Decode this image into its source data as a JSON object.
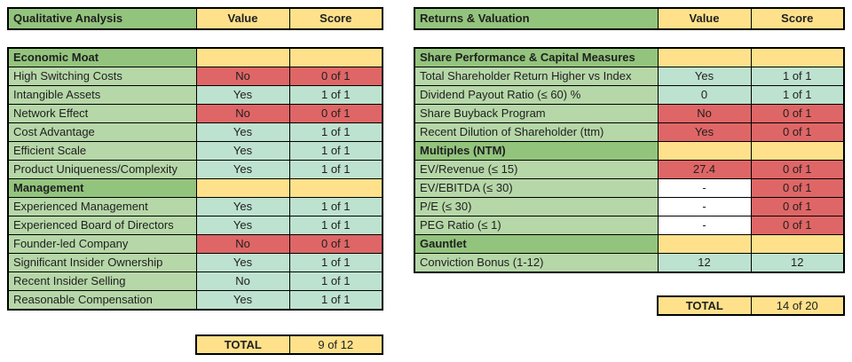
{
  "colors": {
    "header_green": "#93c47d",
    "label_green": "#b6d7a8",
    "pass_teal": "#bde2cf",
    "fail_red": "#df6666",
    "header_yellow": "#ffe18b",
    "empty_white": "#ffffff",
    "border_black": "#000000"
  },
  "left_table": {
    "title": "Qualitative Analysis",
    "columns": {
      "value": "Value",
      "score": "Score"
    },
    "rows": [
      {
        "type": "section",
        "label": "Economic Moat"
      },
      {
        "type": "item",
        "label": "High Switching Costs",
        "value": "No",
        "score": "0 of 1",
        "status": "fail"
      },
      {
        "type": "item",
        "label": "Intangible Assets",
        "value": "Yes",
        "score": "1 of 1",
        "status": "pass"
      },
      {
        "type": "item",
        "label": "Network Effect",
        "value": "No",
        "score": "0 of 1",
        "status": "fail"
      },
      {
        "type": "item",
        "label": "Cost Advantage",
        "value": "Yes",
        "score": "1 of 1",
        "status": "pass"
      },
      {
        "type": "item",
        "label": "Efficient Scale",
        "value": "Yes",
        "score": "1 of 1",
        "status": "pass"
      },
      {
        "type": "item",
        "label": "Product Uniqueness/Complexity",
        "value": "Yes",
        "score": "1 of 1",
        "status": "pass"
      },
      {
        "type": "section",
        "label": "Management"
      },
      {
        "type": "item",
        "label": "Experienced Management",
        "value": "Yes",
        "score": "1 of 1",
        "status": "pass"
      },
      {
        "type": "item",
        "label": "Experienced Board of Directors",
        "value": "Yes",
        "score": "1 of 1",
        "status": "pass"
      },
      {
        "type": "item",
        "label": "Founder-led Company",
        "value": "No",
        "score": "0 of 1",
        "status": "fail"
      },
      {
        "type": "item",
        "label": "Significant Insider Ownership",
        "value": "Yes",
        "score": "1 of 1",
        "status": "pass"
      },
      {
        "type": "item",
        "label": "Recent Insider Selling",
        "value": "No",
        "score": "1 of 1",
        "status": "pass"
      },
      {
        "type": "item",
        "label": "Reasonable Compensation",
        "value": "Yes",
        "score": "1 of 1",
        "status": "pass"
      }
    ],
    "total": {
      "label": "TOTAL",
      "score": "9 of 12"
    }
  },
  "right_table": {
    "title": "Returns & Valuation",
    "columns": {
      "value": "Value",
      "score": "Score"
    },
    "rows": [
      {
        "type": "section",
        "label": "Share Performance & Capital Measures"
      },
      {
        "type": "item",
        "label": "Total Shareholder Return Higher vs Index",
        "value": "Yes",
        "score": "1 of 1",
        "status": "pass"
      },
      {
        "type": "item",
        "label": "Dividend Payout Ratio (≤ 60) %",
        "value": "0",
        "score": "1 of 1",
        "status": "pass"
      },
      {
        "type": "item",
        "label": "Share Buyback Program",
        "value": "No",
        "score": "0 of 1",
        "status": "fail"
      },
      {
        "type": "item",
        "label": "Recent Dilution of Shareholder (ttm)",
        "value": "Yes",
        "score": "0 of 1",
        "status": "fail"
      },
      {
        "type": "section",
        "label": "Multiples (NTM)"
      },
      {
        "type": "item",
        "label": "EV/Revenue (≤ 15)",
        "value": "27.4",
        "score": "0 of 1",
        "status": "fail"
      },
      {
        "type": "item",
        "label": "EV/EBITDA (≤ 30)",
        "value": "-",
        "score": "0 of 1",
        "status": "na"
      },
      {
        "type": "item",
        "label": "P/E (≤ 30)",
        "value": "-",
        "score": "0 of 1",
        "status": "na"
      },
      {
        "type": "item",
        "label": "PEG Ratio (≤ 1)",
        "value": "-",
        "score": "0 of 1",
        "status": "na"
      },
      {
        "type": "section",
        "label": "Gauntlet"
      },
      {
        "type": "item",
        "label": "Conviction Bonus (1-12)",
        "value": "12",
        "score": "12",
        "status": "pass"
      }
    ],
    "total": {
      "label": "TOTAL",
      "score": "14 of 20"
    }
  }
}
